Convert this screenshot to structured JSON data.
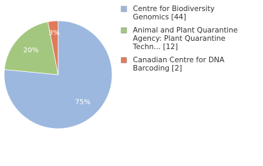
{
  "chart_data": {
    "type": "pie",
    "categories": [
      [
        "Centre for Biodiversity",
        "Genomics [44]"
      ],
      [
        "Animal and Plant Quarantine",
        "Agency: Plant Quarantine",
        "Techn... [12]"
      ],
      [
        "Canadian Centre for DNA",
        "Barcoding [2]"
      ]
    ],
    "values": [
      75,
      20,
      3
    ],
    "value_labels": [
      "75%",
      "20%",
      "3%"
    ],
    "colors": [
      "#9db8df",
      "#a3c77f",
      "#e07b5a"
    ]
  }
}
